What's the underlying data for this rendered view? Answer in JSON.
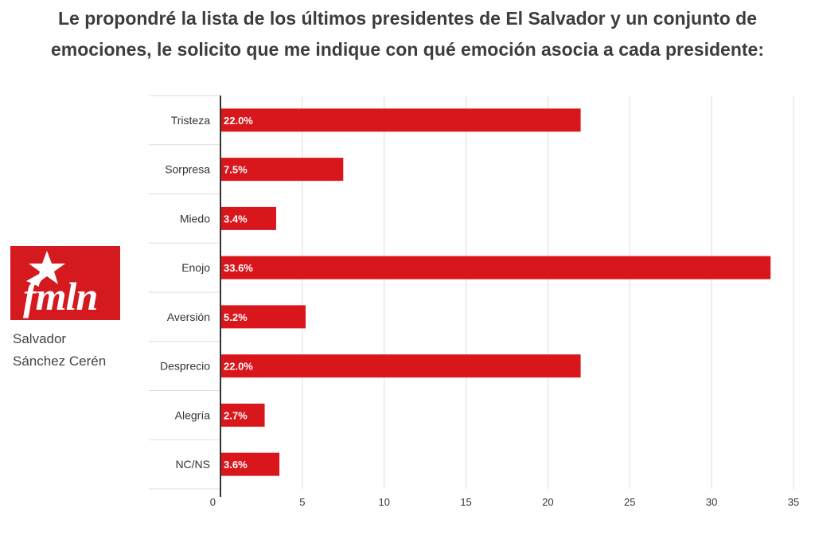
{
  "title": "Le propondré la lista de los últimos presidentes de El Salvador y un conjunto de emociones, le solicito que me indique con qué emoción asocia a cada presidente:",
  "logo": {
    "text": "fmln",
    "icon": "fmln-star-logo",
    "color": "#d41a1f"
  },
  "subject": {
    "line1": "Salvador",
    "line2": "Sánchez Cerén"
  },
  "colors": {
    "bar": "#d9161c",
    "grid": "#dddddd",
    "axis": "#333333"
  },
  "chart_data": {
    "type": "bar",
    "orientation": "horizontal",
    "title": "",
    "xlabel": "",
    "ylabel": "",
    "categories": [
      "Tristeza",
      "Sorpresa",
      "Miedo",
      "Enojo",
      "Aversión",
      "Desprecio",
      "Alegría",
      "NC/NS"
    ],
    "values": [
      22.0,
      7.5,
      3.4,
      33.6,
      5.2,
      22.0,
      2.7,
      3.6
    ],
    "value_labels": [
      "22.0%",
      "7.5%",
      "3.4%",
      "33.6%",
      "5.2%",
      "22.0%",
      "2.7%",
      "3.6%"
    ],
    "xlim": [
      0,
      35
    ],
    "xticks": [
      0,
      5,
      10,
      15,
      20,
      25,
      30,
      35
    ],
    "grid": true,
    "legend": "none"
  }
}
